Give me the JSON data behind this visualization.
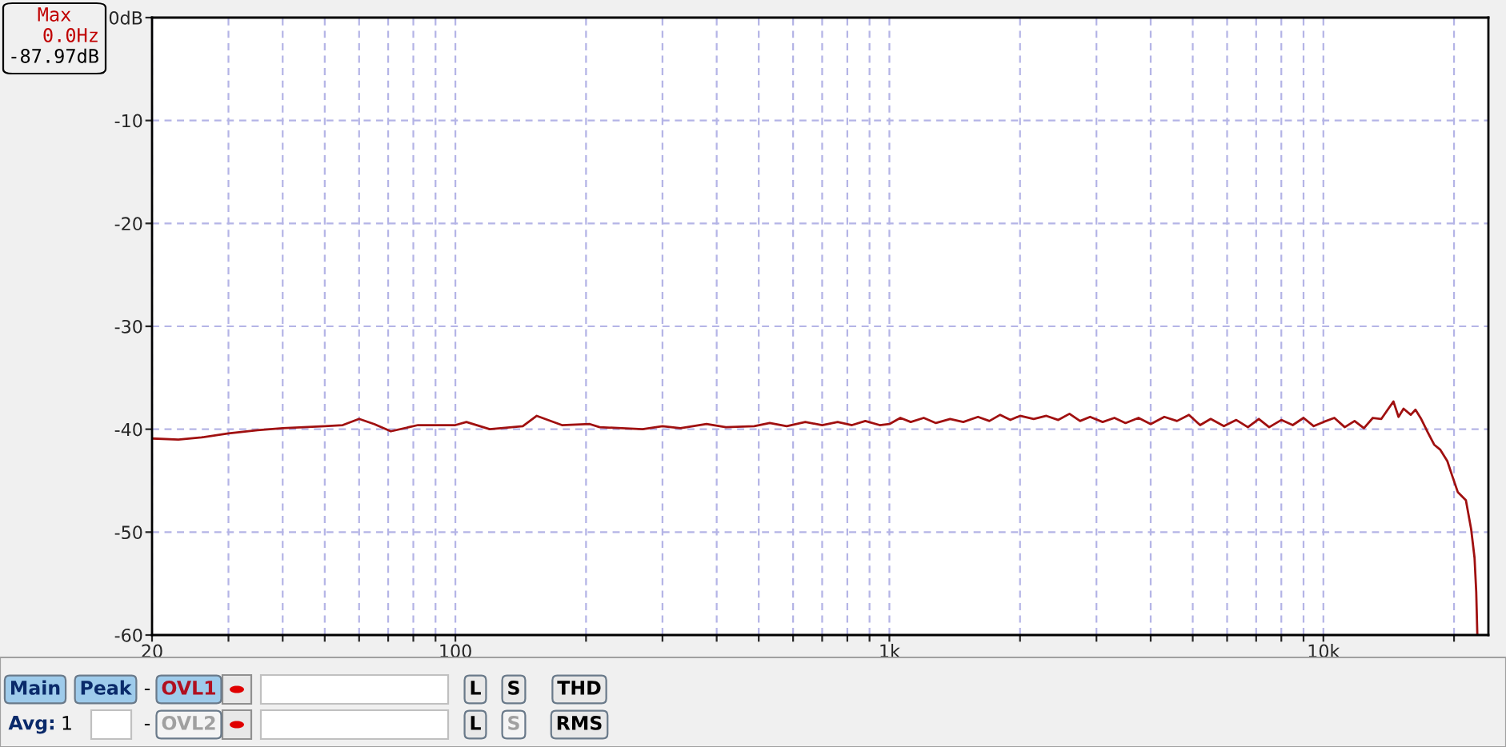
{
  "chart_data": {
    "type": "line",
    "log": "x",
    "grid": true,
    "legend": false,
    "marker": "none",
    "line_style": "solid",
    "xlim": [
      20,
      24000
    ],
    "ylim": [
      -60,
      0
    ],
    "xticks": [
      20,
      {
        "value": 30,
        "label": null
      },
      {
        "value": 40,
        "label": null
      },
      {
        "value": 50,
        "label": null
      },
      {
        "value": 60,
        "label": null
      },
      {
        "value": 70,
        "label": null
      },
      {
        "value": 80,
        "label": null
      },
      {
        "value": 90,
        "label": null
      },
      100,
      {
        "value": 200,
        "label": null
      },
      {
        "value": 300,
        "label": null
      },
      {
        "value": 400,
        "label": null
      },
      {
        "value": 500,
        "label": null
      },
      {
        "value": 600,
        "label": null
      },
      {
        "value": 700,
        "label": null
      },
      {
        "value": 800,
        "label": null
      },
      {
        "value": 900,
        "label": null
      },
      {
        "value": 1000,
        "label": "1k"
      },
      {
        "value": 2000,
        "label": null
      },
      {
        "value": 3000,
        "label": null
      },
      {
        "value": 4000,
        "label": null
      },
      {
        "value": 5000,
        "label": null
      },
      {
        "value": 6000,
        "label": null
      },
      {
        "value": 7000,
        "label": null
      },
      {
        "value": 8000,
        "label": null
      },
      {
        "value": 9000,
        "label": null
      },
      {
        "value": 10000,
        "label": "10k"
      },
      {
        "value": 20000,
        "label": null
      }
    ],
    "yticks": [
      {
        "value": 0,
        "label": "0dB"
      },
      -10,
      -20,
      -30,
      -40,
      -50,
      -60
    ],
    "series": [
      {
        "color": "#a01010",
        "x": [
          20,
          23,
          26,
          30,
          35,
          40,
          50,
          55,
          60,
          65,
          71,
          82,
          100,
          106,
          120,
          143,
          154,
          176,
          204,
          215,
          270,
          300,
          330,
          379,
          420,
          488,
          530,
          580,
          640,
          700,
          760,
          820,
          880,
          950,
          1000,
          1060,
          1120,
          1200,
          1280,
          1380,
          1480,
          1600,
          1700,
          1800,
          1900,
          2000,
          2150,
          2300,
          2450,
          2600,
          2750,
          2900,
          3100,
          3300,
          3500,
          3750,
          4000,
          4300,
          4600,
          4900,
          5200,
          5500,
          5900,
          6300,
          6700,
          7100,
          7500,
          8000,
          8500,
          9000,
          9500,
          10000,
          10600,
          11200,
          11800,
          12400,
          13000,
          13600,
          14500,
          14900,
          15300,
          15900,
          16300,
          16800,
          17400,
          18000,
          18600,
          19300,
          19800,
          20400,
          21300,
          21900,
          22300,
          22500,
          22630
        ],
        "values": [
          -40.9,
          -41.0,
          -40.8,
          -40.4,
          -40.1,
          -39.9,
          -39.7,
          -39.6,
          -39.0,
          -39.5,
          -40.2,
          -39.6,
          -39.6,
          -39.3,
          -40.0,
          -39.7,
          -38.7,
          -39.6,
          -39.5,
          -39.8,
          -40.0,
          -39.7,
          -39.9,
          -39.5,
          -39.8,
          -39.7,
          -39.4,
          -39.7,
          -39.3,
          -39.6,
          -39.3,
          -39.6,
          -39.2,
          -39.6,
          -39.5,
          -38.9,
          -39.3,
          -38.9,
          -39.4,
          -39.0,
          -39.3,
          -38.8,
          -39.2,
          -38.6,
          -39.1,
          -38.7,
          -39.0,
          -38.7,
          -39.1,
          -38.5,
          -39.2,
          -38.8,
          -39.3,
          -38.9,
          -39.4,
          -38.9,
          -39.5,
          -38.8,
          -39.2,
          -38.6,
          -39.6,
          -39.0,
          -39.7,
          -39.1,
          -39.8,
          -39.0,
          -39.8,
          -39.1,
          -39.6,
          -38.9,
          -39.7,
          -39.3,
          -38.9,
          -39.8,
          -39.2,
          -39.9,
          -38.9,
          -39.0,
          -37.3,
          -38.8,
          -38.0,
          -38.6,
          -38.1,
          -39.0,
          -40.3,
          -41.5,
          -42.0,
          -43.1,
          -44.5,
          -46.1,
          -46.9,
          -49.7,
          -52.5,
          -55.8,
          -59.9
        ]
      }
    ],
    "annotations": [
      "Max",
      "0.0Hz",
      "-87.97dB",
      "Main",
      "Peak",
      "-",
      "OVL1",
      "L",
      "S",
      "THD",
      "Avg:",
      "1",
      "-",
      "OVL2",
      "L",
      "S",
      "RMS"
    ]
  }
}
